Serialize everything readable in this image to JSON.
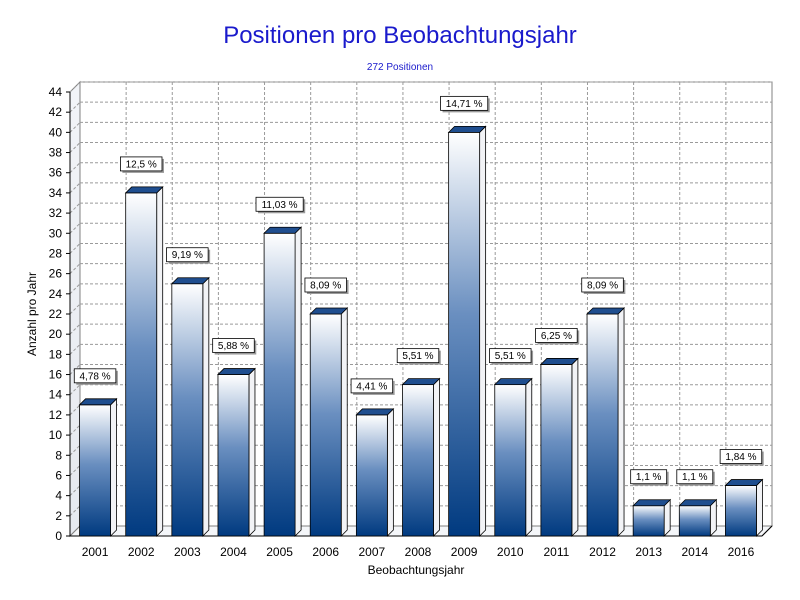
{
  "chart_data": {
    "type": "bar",
    "title": "Positionen pro Beobachtungsjahr",
    "subtitle": "272 Positionen",
    "xlabel": "Beobachtungsjahr",
    "ylabel": "Anzahl pro Jahr",
    "ylim": [
      0,
      44
    ],
    "y_ticks": [
      0,
      2,
      4,
      6,
      8,
      10,
      12,
      14,
      16,
      18,
      20,
      22,
      24,
      26,
      28,
      30,
      32,
      34,
      36,
      38,
      40,
      42,
      44
    ],
    "grid": true,
    "categories": [
      "2001",
      "2002",
      "2003",
      "2004",
      "2005",
      "2006",
      "2007",
      "2008",
      "2009",
      "2010",
      "2011",
      "2012",
      "2013",
      "2014",
      "2016"
    ],
    "values": [
      13,
      34,
      25,
      16,
      30,
      22,
      12,
      15,
      40,
      15,
      17,
      22,
      3,
      3,
      5
    ],
    "data_labels": [
      "4,78 %",
      "12,5 %",
      "9,19 %",
      "5,88 %",
      "11,03 %",
      "8,09 %",
      "4,41 %",
      "5,51 %",
      "14,71 %",
      "5,51 %",
      "6,25 %",
      "8,09 %",
      "1,1 %",
      "1,1 %",
      "1,84 %"
    ],
    "colors": {
      "bar_top": "#ffffff",
      "bar_bottom": "#003a80",
      "title": "#1a1acc"
    }
  }
}
